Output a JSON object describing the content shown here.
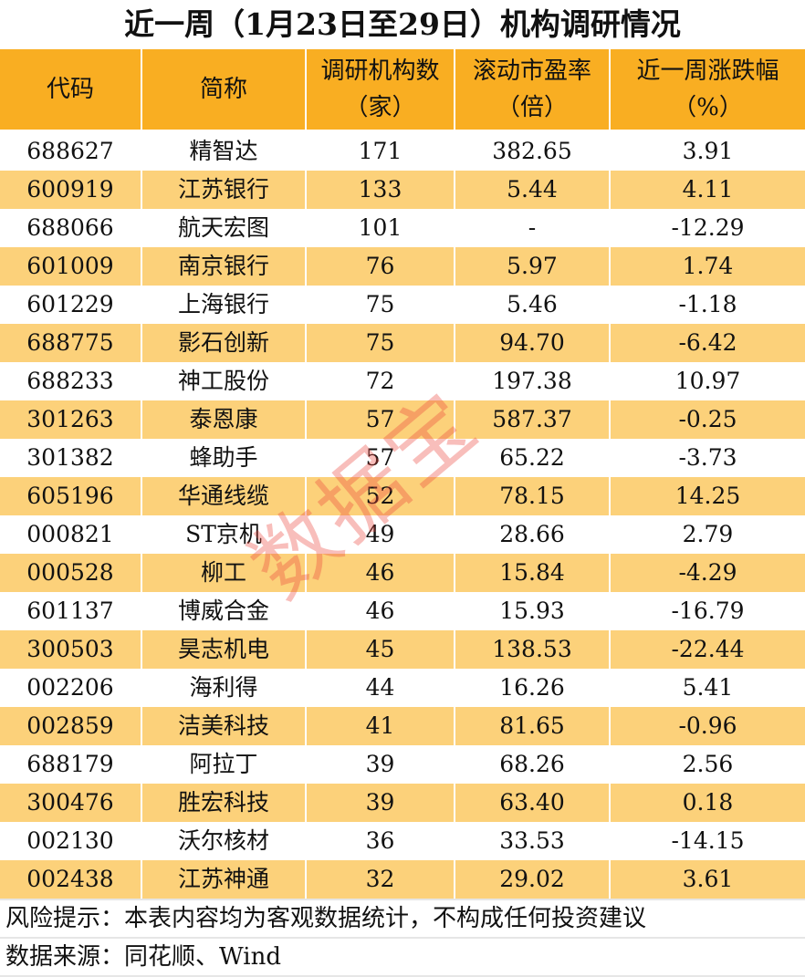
{
  "title": "近一周（1月23日至29日）机构调研情况",
  "watermark": "数据宝",
  "colors": {
    "header": "#F9AE22",
    "alt_row": "#FCD17A",
    "watermark": "#EB463C"
  },
  "chart_data": {
    "type": "table",
    "title": "近一周（1月23日至29日）机构调研情况",
    "columns": [
      {
        "line1": "代码",
        "line2": ""
      },
      {
        "line1": "简称",
        "line2": ""
      },
      {
        "line1": "调研机构数",
        "line2": "（家）"
      },
      {
        "line1": "滚动市盈率",
        "line2": "（倍）"
      },
      {
        "line1": "近一周涨跌幅",
        "line2": "（%）"
      }
    ],
    "rows": [
      [
        "688627",
        "精智达",
        "171",
        "382.65",
        "3.91"
      ],
      [
        "600919",
        "江苏银行",
        "133",
        "5.44",
        "4.11"
      ],
      [
        "688066",
        "航天宏图",
        "101",
        "-",
        "-12.29"
      ],
      [
        "601009",
        "南京银行",
        "76",
        "5.97",
        "1.74"
      ],
      [
        "601229",
        "上海银行",
        "75",
        "5.46",
        "-1.18"
      ],
      [
        "688775",
        "影石创新",
        "75",
        "94.70",
        "-6.42"
      ],
      [
        "688233",
        "神工股份",
        "72",
        "197.38",
        "10.97"
      ],
      [
        "301263",
        "泰恩康",
        "57",
        "587.37",
        "-0.25"
      ],
      [
        "301382",
        "蜂助手",
        "57",
        "65.22",
        "-3.73"
      ],
      [
        "605196",
        "华通线缆",
        "52",
        "78.15",
        "14.25"
      ],
      [
        "000821",
        "ST京机",
        "49",
        "28.66",
        "2.79"
      ],
      [
        "000528",
        "柳工",
        "46",
        "15.84",
        "-4.29"
      ],
      [
        "601137",
        "博威合金",
        "46",
        "15.93",
        "-16.79"
      ],
      [
        "300503",
        "昊志机电",
        "45",
        "138.53",
        "-22.44"
      ],
      [
        "002206",
        "海利得",
        "44",
        "16.26",
        "5.41"
      ],
      [
        "002859",
        "洁美科技",
        "41",
        "81.65",
        "-0.96"
      ],
      [
        "688179",
        "阿拉丁",
        "39",
        "68.26",
        "2.56"
      ],
      [
        "300476",
        "胜宏科技",
        "39",
        "63.40",
        "0.18"
      ],
      [
        "002130",
        "沃尔核材",
        "36",
        "33.53",
        "-14.15"
      ],
      [
        "002438",
        "江苏神通",
        "32",
        "29.02",
        "3.61"
      ]
    ]
  },
  "footer": {
    "risk": "风险提示：本表内容均为客观数据统计，不构成任何投资建议",
    "source": "数据来源：同花顺、Wind"
  }
}
